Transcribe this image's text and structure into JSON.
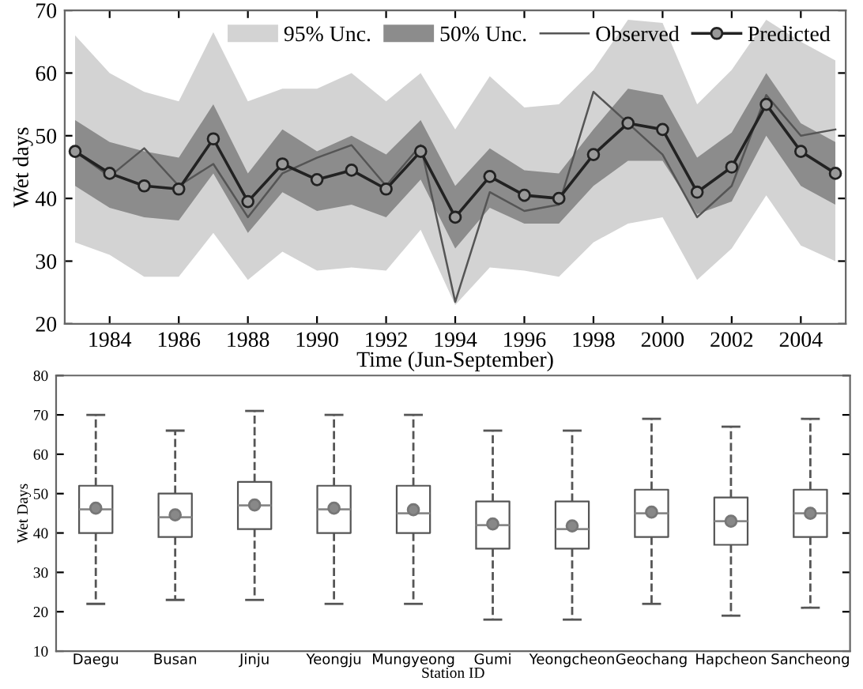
{
  "chart_data": [
    {
      "type": "line",
      "xlabel": "Time (Jun-September)",
      "ylabel": "Wet days",
      "x": [
        1983,
        1984,
        1985,
        1986,
        1987,
        1988,
        1989,
        1990,
        1991,
        1992,
        1993,
        1994,
        1995,
        1996,
        1997,
        1998,
        1999,
        2000,
        2001,
        2002,
        2003,
        2004,
        2005
      ],
      "series": [
        {
          "name": "95% Unc.",
          "color": "#d3d3d3",
          "values": [
            null,
            null,
            null,
            null,
            null,
            null,
            null,
            null,
            null,
            null,
            null,
            null,
            null,
            null,
            null,
            null,
            null,
            null,
            null,
            null,
            null,
            null,
            null
          ],
          "lower": [
            33,
            31,
            27.5,
            27.5,
            34.5,
            27,
            31.5,
            28.5,
            29,
            28.5,
            35,
            23,
            29,
            28.5,
            27.5,
            33,
            36,
            37,
            27,
            32,
            40.5,
            32.5,
            30
          ],
          "upper": [
            66,
            60,
            57,
            55.5,
            66.5,
            55.5,
            57.5,
            57.5,
            60,
            55.5,
            60,
            51,
            59.5,
            54.5,
            55,
            60.5,
            68.5,
            68,
            55,
            60.5,
            68.5,
            65,
            62
          ]
        },
        {
          "name": "50% Unc.",
          "color": "#8c8c8c",
          "values": [
            null,
            null,
            null,
            null,
            null,
            null,
            null,
            null,
            null,
            null,
            null,
            null,
            null,
            null,
            null,
            null,
            null,
            null,
            null,
            null,
            null,
            null,
            null
          ],
          "lower": [
            42,
            38.5,
            37,
            36.5,
            44,
            34.5,
            41,
            38,
            39,
            37,
            43,
            32,
            38.5,
            36,
            36,
            42,
            46,
            46,
            37.5,
            39.5,
            50,
            42,
            39
          ],
          "upper": [
            52.5,
            49,
            47.5,
            46.5,
            55,
            44,
            51,
            47.5,
            50,
            47,
            52.5,
            42,
            48,
            44.5,
            44,
            51,
            57.5,
            56.5,
            46.5,
            50.5,
            60,
            52,
            49
          ]
        },
        {
          "name": "Observed",
          "color": "#555555",
          "marker": "none",
          "values": [
            47.5,
            43.5,
            48,
            42,
            45.5,
            37,
            44,
            46.5,
            48.5,
            42,
            48.5,
            23.5,
            41,
            38,
            39,
            57,
            52,
            47,
            37,
            42,
            56.5,
            50,
            51
          ]
        },
        {
          "name": "Predicted",
          "color": "#222222",
          "marker": "circle",
          "values": [
            47.5,
            44,
            42,
            41.5,
            49.5,
            39.5,
            45.5,
            43,
            44.5,
            41.5,
            47.5,
            37,
            43.5,
            40.5,
            40,
            47,
            52,
            51,
            41,
            45,
            55,
            47.5,
            44
          ]
        }
      ],
      "xlim": [
        1982.7,
        2005.3
      ],
      "ylim": [
        20,
        70
      ],
      "xticks": [
        1984,
        1986,
        1988,
        1990,
        1992,
        1994,
        1996,
        1998,
        2000,
        2002,
        2004
      ],
      "yticks": [
        20,
        30,
        40,
        50,
        60,
        70
      ],
      "grid": false,
      "legend": "top right"
    },
    {
      "type": "box",
      "xlabel": "Station ID",
      "ylabel": "Wet Days",
      "categories": [
        "Daegu",
        "Busan",
        "Jinju",
        "Yeongju",
        "Mungyeong",
        "Gumi",
        "Yeongcheon",
        "Geochang",
        "Hapcheon",
        "Sancheong"
      ],
      "boxes": [
        {
          "low": 22,
          "q1": 40,
          "median": 46,
          "q3": 52,
          "high": 70,
          "mean": 46.3
        },
        {
          "low": 23,
          "q1": 39,
          "median": 44,
          "q3": 50,
          "high": 66,
          "mean": 44.6
        },
        {
          "low": 23,
          "q1": 41,
          "median": 47,
          "q3": 53,
          "high": 71,
          "mean": 47.1
        },
        {
          "low": 22,
          "q1": 40,
          "median": 46,
          "q3": 52,
          "high": 70,
          "mean": 46.3
        },
        {
          "low": 22,
          "q1": 40,
          "median": 45,
          "q3": 52,
          "high": 70,
          "mean": 45.9
        },
        {
          "low": 18,
          "q1": 36,
          "median": 42,
          "q3": 48,
          "high": 66,
          "mean": 42.3
        },
        {
          "low": 18,
          "q1": 36,
          "median": 41,
          "q3": 48,
          "high": 66,
          "mean": 41.8
        },
        {
          "low": 22,
          "q1": 39,
          "median": 45,
          "q3": 51,
          "high": 69,
          "mean": 45.3
        },
        {
          "low": 19,
          "q1": 37,
          "median": 43,
          "q3": 49,
          "high": 67,
          "mean": 43
        },
        {
          "low": 21,
          "q1": 39,
          "median": 45,
          "q3": 51,
          "high": 69,
          "mean": 45
        }
      ],
      "color": "#555555",
      "line_style": "dashed",
      "ylim": [
        10,
        80
      ],
      "yticks": [
        10,
        20,
        30,
        40,
        50,
        60,
        70,
        80
      ],
      "grid": false
    }
  ]
}
